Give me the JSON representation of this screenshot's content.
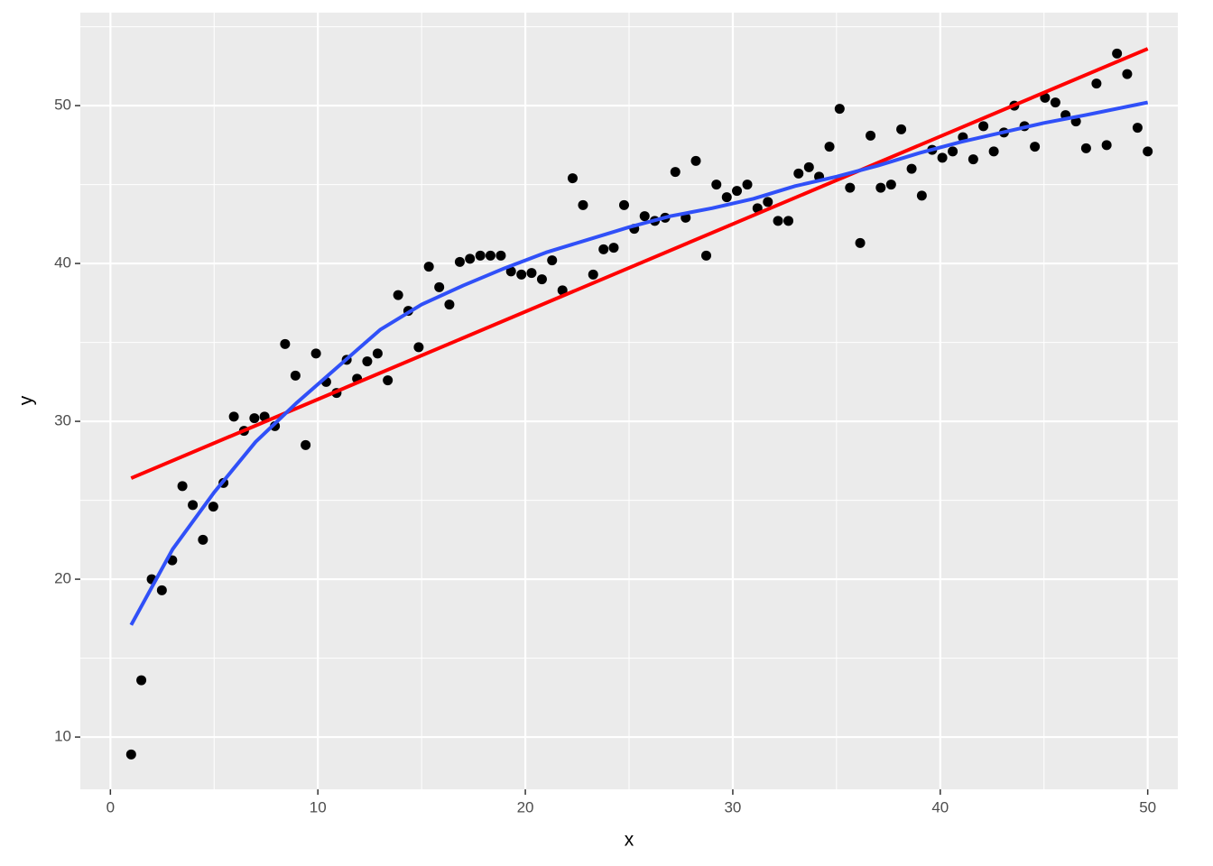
{
  "chart_data": {
    "type": "scatter",
    "x_label": "x",
    "y_label": "y",
    "xlim": [
      -1.45,
      51.45
    ],
    "ylim": [
      6.69,
      55.89
    ],
    "xticks": [
      0,
      10,
      20,
      30,
      40,
      50
    ],
    "yticks": [
      10,
      20,
      30,
      40,
      50
    ],
    "grid": true,
    "color": "#000000",
    "x": [
      1.0,
      1.49,
      1.99,
      2.48,
      2.98,
      3.47,
      3.97,
      4.46,
      4.96,
      5.45,
      5.95,
      6.44,
      6.94,
      7.43,
      7.93,
      8.42,
      8.92,
      9.41,
      9.91,
      10.4,
      10.9,
      11.39,
      11.89,
      12.38,
      12.88,
      13.37,
      13.87,
      14.36,
      14.86,
      15.35,
      15.85,
      16.34,
      16.84,
      17.33,
      17.83,
      18.32,
      18.82,
      19.31,
      19.81,
      20.3,
      20.8,
      21.29,
      21.79,
      22.28,
      22.78,
      23.27,
      23.77,
      24.26,
      24.76,
      25.25,
      25.75,
      26.24,
      26.74,
      27.23,
      27.73,
      28.22,
      28.72,
      29.21,
      29.71,
      30.2,
      30.7,
      31.19,
      31.69,
      32.18,
      32.68,
      33.17,
      33.67,
      34.16,
      34.66,
      35.15,
      35.65,
      36.14,
      36.64,
      37.13,
      37.63,
      38.12,
      38.62,
      39.11,
      39.61,
      40.1,
      40.6,
      41.09,
      41.59,
      42.08,
      42.58,
      43.07,
      43.57,
      44.06,
      44.56,
      45.05,
      45.55,
      46.04,
      46.54,
      47.03,
      47.53,
      48.02,
      48.52,
      49.01,
      49.51,
      50.0
    ],
    "values": [
      8.9,
      13.6,
      20.0,
      19.3,
      21.2,
      25.9,
      24.7,
      22.5,
      24.6,
      26.1,
      30.3,
      29.4,
      30.2,
      30.3,
      29.7,
      34.9,
      32.9,
      28.5,
      34.3,
      32.5,
      31.8,
      33.9,
      32.7,
      33.8,
      34.3,
      32.6,
      38.0,
      37.0,
      34.7,
      39.8,
      38.5,
      37.4,
      40.1,
      40.3,
      40.5,
      40.5,
      40.5,
      39.5,
      39.3,
      39.4,
      39.0,
      40.2,
      38.3,
      45.4,
      43.7,
      39.3,
      40.9,
      41.0,
      43.7,
      42.2,
      43.0,
      42.7,
      42.9,
      45.8,
      42.9,
      46.5,
      40.5,
      45.0,
      44.2,
      44.6,
      45.0,
      43.5,
      43.9,
      42.7,
      42.7,
      45.7,
      46.1,
      45.5,
      47.4,
      49.8,
      44.8,
      41.3,
      48.1,
      44.8,
      45.0,
      48.5,
      46.0,
      44.3,
      47.2,
      46.7,
      47.1,
      48.0,
      46.6,
      48.7,
      47.1,
      48.3,
      50.0,
      48.7,
      47.4,
      50.5,
      50.2,
      49.4,
      49.0,
      47.3,
      51.4,
      47.5,
      53.3,
      52.0,
      48.6,
      47.1
    ],
    "lines": [
      {
        "color": "#ff0000",
        "x": [
          1,
          50
        ],
        "values": [
          26.4,
          53.6
        ]
      },
      {
        "color": "#3050f8",
        "x": [
          1,
          3,
          5,
          7,
          9,
          11,
          13,
          15,
          17,
          19,
          21,
          23,
          25,
          27,
          29,
          31,
          33,
          35,
          37,
          39,
          41,
          43,
          45,
          47,
          50
        ],
        "values": [
          17.1,
          21.9,
          25.5,
          28.7,
          31.2,
          33.5,
          35.8,
          37.4,
          38.6,
          39.7,
          40.7,
          41.5,
          42.3,
          43.0,
          43.5,
          44.1,
          44.9,
          45.5,
          46.2,
          47.0,
          47.7,
          48.3,
          48.9,
          49.4,
          50.2
        ]
      }
    ]
  }
}
